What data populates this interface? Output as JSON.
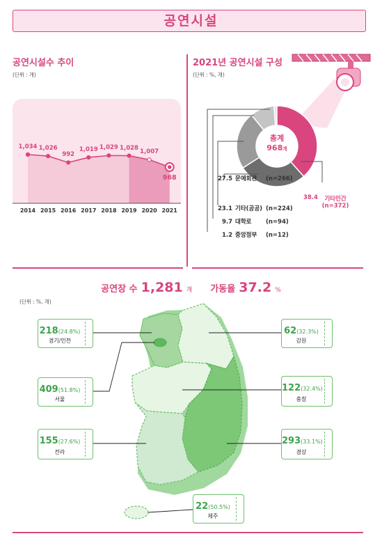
{
  "header": {
    "title": "공연시설"
  },
  "trend": {
    "title": "공연시설수 추이",
    "unit": "(단위 : 개)",
    "years": [
      "2014",
      "2015",
      "2016",
      "2017",
      "2018",
      "2019",
      "2020",
      "2021"
    ],
    "values": [
      1034,
      1026,
      992,
      1019,
      1029,
      1028,
      1007,
      968
    ],
    "labels": [
      "1,034",
      "1,026",
      "992",
      "1,019",
      "1,029",
      "1,028",
      "1,007",
      "968"
    ]
  },
  "composition": {
    "title": "2021년 공연시설 구성",
    "unit": "(단위 : %, 개)",
    "center_label": "총계",
    "center_value": "968",
    "center_unit": "개",
    "main_item": {
      "pct": "38.4",
      "name": "기타민간",
      "count": "(n=372)"
    },
    "items": [
      {
        "pct": "27.5",
        "name": "문예회관",
        "count": "(n=266)"
      },
      {
        "pct": "23.1",
        "name": "기타(공공)",
        "count": "(n=224)"
      },
      {
        "pct": "9.7",
        "name": "대학로",
        "count": "(n=94)"
      },
      {
        "pct": "1.2",
        "name": "중앙정부",
        "count": "(n=12)"
      }
    ]
  },
  "chart_data": {
    "type": "line",
    "title": "공연시설수 추이",
    "x": [
      "2014",
      "2015",
      "2016",
      "2017",
      "2018",
      "2019",
      "2020",
      "2021"
    ],
    "series": [
      {
        "values": [
          1034,
          1026,
          992,
          1019,
          1029,
          1028,
          1007,
          968
        ]
      }
    ],
    "ylim": [
      0,
      1100
    ]
  },
  "pie_data": {
    "type": "pie",
    "title": "2021년 공연시설 구성",
    "slices": [
      {
        "name": "기타민간",
        "value": 38.4,
        "color": "#d8457f"
      },
      {
        "name": "문예회관",
        "value": 27.5,
        "color": "#6d6d6d"
      },
      {
        "name": "기타(공공)",
        "value": 23.1,
        "color": "#9a9a9a"
      },
      {
        "name": "대학로",
        "value": 9.7,
        "color": "#c4c4c4"
      },
      {
        "name": "중앙정부",
        "value": 1.2,
        "color": "#e2e2e2"
      }
    ]
  },
  "stats": {
    "venues_label": "공연장 수",
    "venues_value": "1,281",
    "venues_unit": "개",
    "rate_label": "가동율",
    "rate_value": "37.2",
    "rate_unit": "%",
    "unit": "(단위 : %, 개)"
  },
  "regions": [
    {
      "num": "218",
      "pct": "(24.8%)",
      "name": "경기/인천"
    },
    {
      "num": "409",
      "pct": "(51.8%)",
      "name": "서울"
    },
    {
      "num": "155",
      "pct": "(27.6%)",
      "name": "전라"
    },
    {
      "num": "62",
      "pct": "(32.3%)",
      "name": "강원"
    },
    {
      "num": "122",
      "pct": "(32.4%)",
      "name": "충청"
    },
    {
      "num": "293",
      "pct": "(33.1%)",
      "name": "경상"
    },
    {
      "num": "22",
      "pct": "(50.5%)",
      "name": "제주"
    }
  ],
  "colors": {
    "accent": "#d8457f",
    "green": "#6cbf6c",
    "dark_green": "#3da34b"
  }
}
